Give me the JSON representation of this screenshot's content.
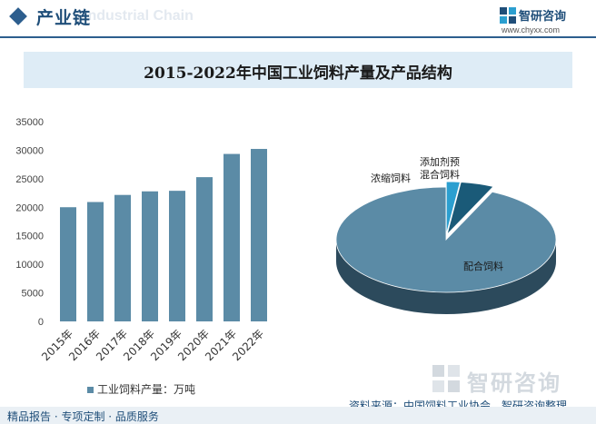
{
  "header": {
    "title": "产业链",
    "bg_word": "Industrial Chain"
  },
  "brand": {
    "name": "智研咨询",
    "url": "www.chyxx.com"
  },
  "watermark": "智研咨询",
  "footer": {
    "services": "精品报告 · 专项定制 · 品质服务",
    "source": "资料来源：中国饲料工业协会、智研咨询整理"
  },
  "colors": {
    "bar": "#5b8ba6",
    "pie_main_top": "#5b8ba6",
    "pie_main_side": "#2c4a5c",
    "pie_small1_top": "#1a5a78",
    "pie_small2_top": "#2b9fd0",
    "accent": "#1f4e79"
  },
  "chart_data": [
    {
      "type": "bar",
      "title": "2015-2022年中国工业饲料产量及产品结构",
      "categories": [
        "2015年",
        "2016年",
        "2017年",
        "2018年",
        "2019年",
        "2020年",
        "2021年",
        "2022年"
      ],
      "series": [
        {
          "name": "工业饲料产量：万吨",
          "values": [
            20009,
            20918,
            22161,
            22788,
            22885,
            25276,
            29344,
            30223
          ]
        }
      ],
      "ylim": [
        0,
        35000
      ],
      "yticks": [
        0,
        5000,
        10000,
        15000,
        20000,
        25000,
        30000,
        35000
      ],
      "legend": "bottom",
      "grid": false
    },
    {
      "type": "pie",
      "style": "3d",
      "categories": [
        "配合饲料",
        "浓缩饲料",
        "添加剂预混合饲料"
      ],
      "labels": [
        "配合饲料",
        "浓缩饲料",
        "添加剂预\n混合饲料"
      ],
      "values": [
        93.1,
        4.9,
        2.0
      ]
    }
  ]
}
